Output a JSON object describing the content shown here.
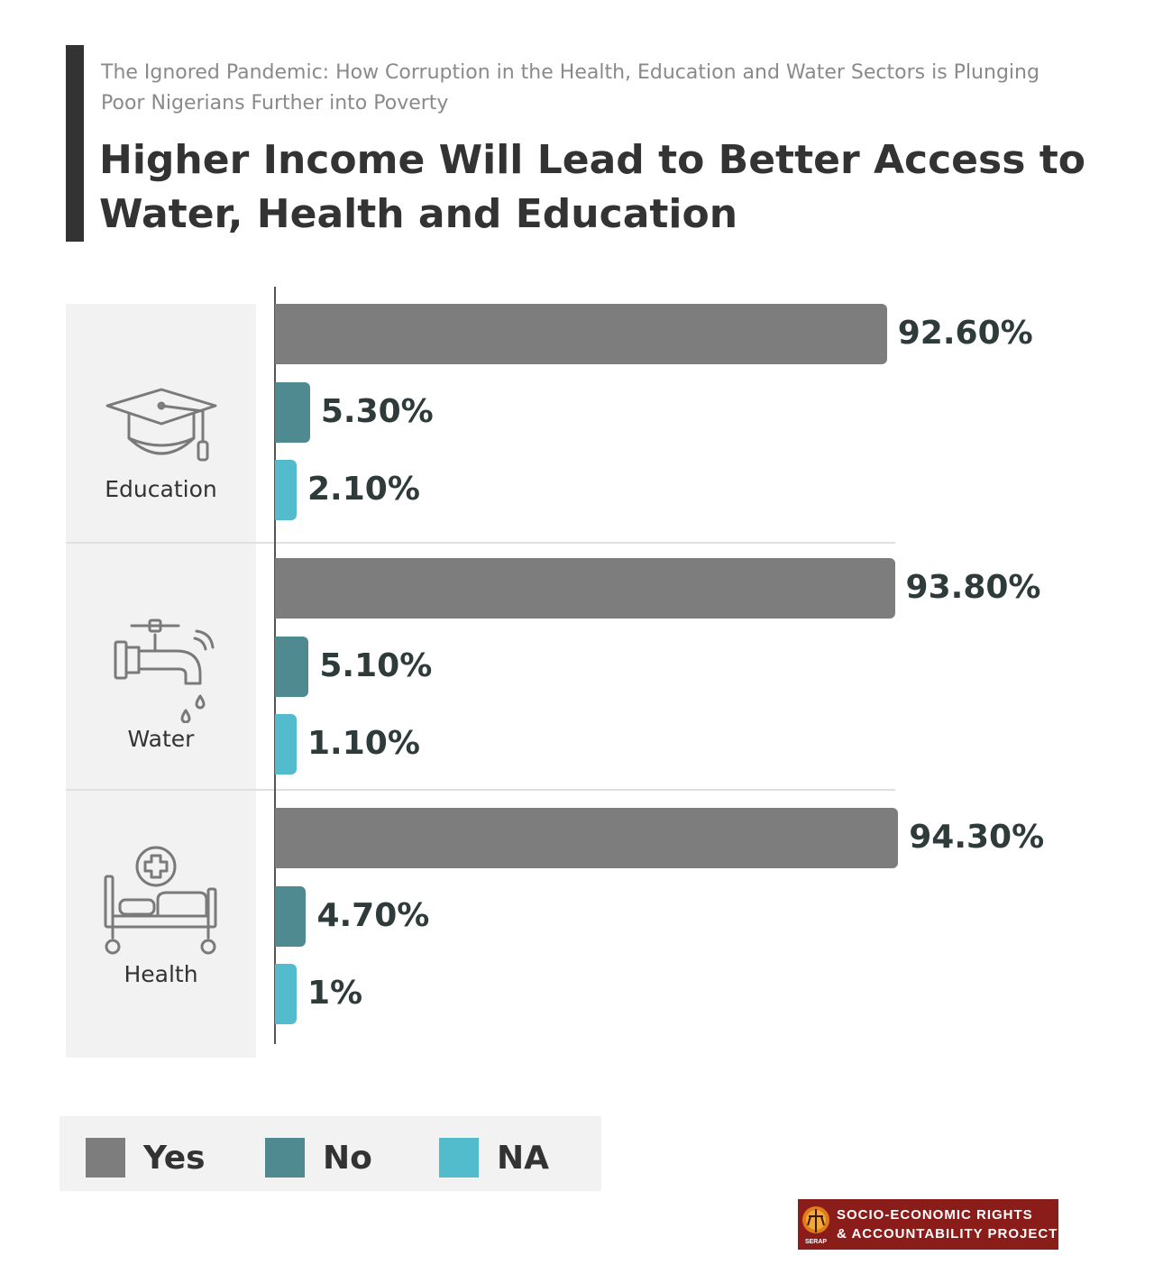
{
  "header": {
    "subtitle": "The Ignored Pandemic: How Corruption in the Health, Education and Water Sectors is Plunging Poor Nigerians Further into Poverty",
    "title": "Higher Income Will Lead to Better Access to Water, Health and Education"
  },
  "chart_data": {
    "type": "bar",
    "orientation": "horizontal",
    "categories": [
      "Education",
      "Water",
      "Health"
    ],
    "series": [
      {
        "name": "Yes",
        "values": [
          92.6,
          93.8,
          94.3
        ],
        "labels": [
          "92.60%",
          "93.80%",
          "94.30%"
        ],
        "color": "#7d7d7d"
      },
      {
        "name": "No",
        "values": [
          5.3,
          5.1,
          4.7
        ],
        "labels": [
          "5.30%",
          "5.10%",
          "4.70%"
        ],
        "color": "#4e8a8f"
      },
      {
        "name": "NA",
        "values": [
          2.1,
          1.1,
          1
        ],
        "labels": [
          "2.10%",
          "1.10%",
          "1%"
        ],
        "color": "#52bccc"
      }
    ],
    "grid": false,
    "legend_position": "bottom-left"
  },
  "categories": [
    {
      "label": "Education",
      "icon": "graduation-cap-icon"
    },
    {
      "label": "Water",
      "icon": "water-tap-icon"
    },
    {
      "label": "Health",
      "icon": "hospital-bed-icon"
    }
  ],
  "legend": [
    {
      "label": "Yes",
      "color": "#7d7d7d"
    },
    {
      "label": "No",
      "color": "#4e8a8f"
    },
    {
      "label": "NA",
      "color": "#52bccc"
    }
  ],
  "logo": {
    "line1": "SOCIO-ECONOMIC RIGHTS",
    "line2": "& ACCOUNTABILITY PROJECT",
    "emblem_text": "SERAP"
  }
}
